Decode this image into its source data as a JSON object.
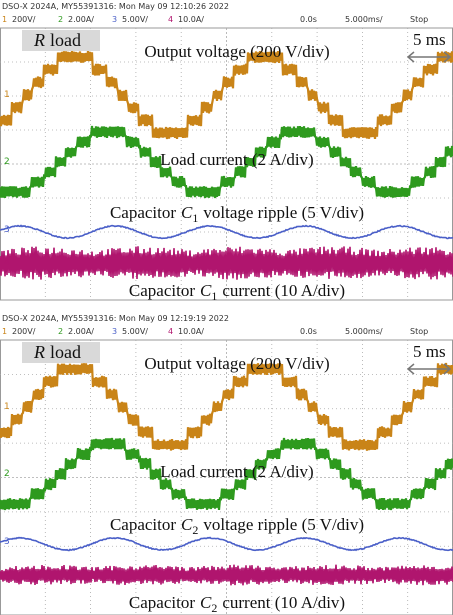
{
  "panels": [
    {
      "header": "DSO-X 2024A, MY55391316: Mon May 09 12:10:26 2022",
      "channels": [
        {
          "number": "1",
          "scale": "200V/"
        },
        {
          "number": "2",
          "scale": "2.00A/"
        },
        {
          "number": "3",
          "scale": "5.00V/"
        },
        {
          "number": "4",
          "scale": "10.0A/"
        }
      ],
      "time_offset": "0.0s",
      "timebase": "5.000ms/",
      "status": "Stop",
      "load_label": {
        "var": "R",
        "text": "load"
      },
      "time_scale": "5 ms",
      "traces": [
        {
          "marker": "1",
          "label": "Output voltage (200 V/div)"
        },
        {
          "marker": "2",
          "label": "Load current (2 A/div)"
        },
        {
          "marker": "3",
          "prefix": "Capacitor",
          "var": "C",
          "sub": "1",
          "label": "voltage ripple (5 V/div)"
        },
        {
          "marker": "4",
          "prefix": "Capacitor",
          "var": "C",
          "sub": "1",
          "label": "current (10 A/div)"
        }
      ]
    },
    {
      "header": "DSO-X 2024A, MY55391316: Mon May 09 12:19:19 2022",
      "channels": [
        {
          "number": "1",
          "scale": "200V/"
        },
        {
          "number": "2",
          "scale": "2.00A/"
        },
        {
          "number": "3",
          "scale": "5.00V/"
        },
        {
          "number": "4",
          "scale": "10.0A/"
        }
      ],
      "time_offset": "0.0s",
      "timebase": "5.000ms/",
      "status": "Stop",
      "load_label": {
        "var": "R",
        "text": "load"
      },
      "time_scale": "5 ms",
      "traces": [
        {
          "marker": "1",
          "label": "Output voltage (200 V/div)"
        },
        {
          "marker": "2",
          "label": "Load current (2 A/div)"
        },
        {
          "marker": "3",
          "prefix": "Capacitor",
          "var": "C",
          "sub": "2",
          "label": "voltage ripple (5 V/div)"
        },
        {
          "marker": "4",
          "prefix": "Capacitor",
          "var": "C",
          "sub": "2",
          "label": "current (10 A/div)"
        }
      ]
    }
  ]
}
